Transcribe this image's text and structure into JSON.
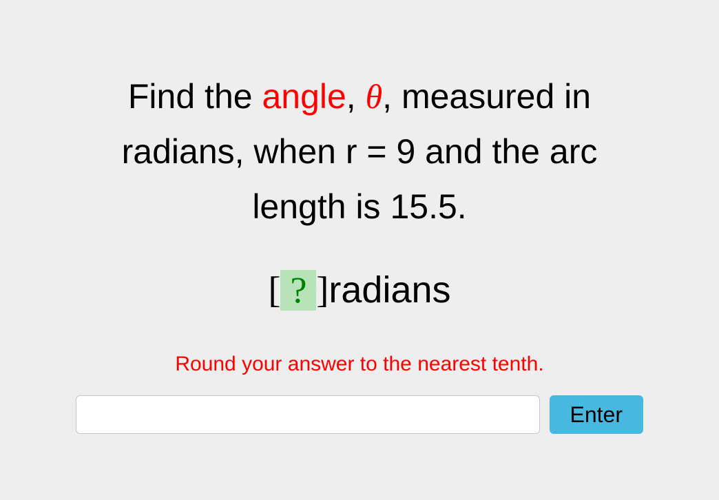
{
  "question": {
    "pre_hl": "Find the ",
    "hl_word": "angle",
    "post_hl_pre_theta": ", ",
    "theta": "θ",
    "post_theta": ", measured in radians, when r = 9 and the arc length is 15.5."
  },
  "answer_box": {
    "placeholder": "?",
    "unit": "radians",
    "box_bg": "#b8e3b8",
    "box_fg": "#008000"
  },
  "hint": "Round your answer to the nearest tenth.",
  "input": {
    "value": "",
    "placeholder": ""
  },
  "button": {
    "label": "Enter",
    "bg": "#47b8e0"
  },
  "colors": {
    "highlight": "#ff0000",
    "background": "#eeeeee"
  }
}
